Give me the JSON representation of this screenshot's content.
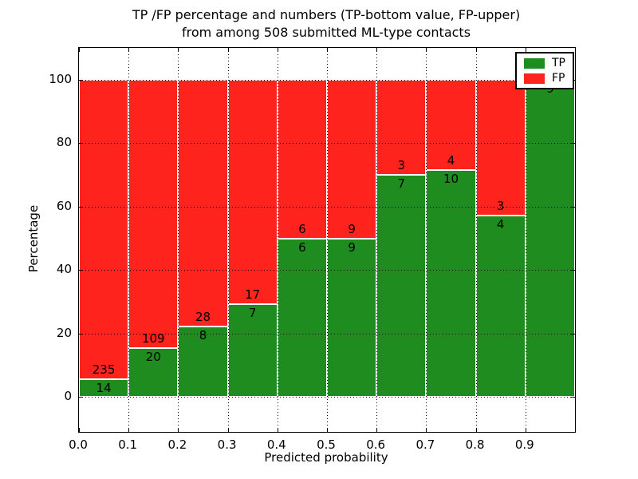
{
  "figure": {
    "title_line1": "TP /FP percentage and numbers (TP-bottom value, FP-upper)",
    "title_line2": "from among 508 submitted ML-type contacts",
    "background_color": "#ffffff"
  },
  "chart_data": {
    "type": "bar",
    "stacked": true,
    "orientation": "vertical",
    "title": "TP /FP percentage and numbers (TP-bottom value, FP-upper) from among 508 submitted ML-type contacts",
    "xlabel": "Predicted probability",
    "ylabel": "Percentage",
    "total_contacts": 508,
    "bin_width": 0.1,
    "bin_left_edges": [
      0.0,
      0.1,
      0.2,
      0.3,
      0.4,
      0.5,
      0.6,
      0.7,
      0.8,
      0.9
    ],
    "series": [
      {
        "name": "TP",
        "color": "#1e8c1e",
        "counts": [
          14,
          20,
          8,
          7,
          6,
          9,
          7,
          10,
          4,
          9
        ]
      },
      {
        "name": "FP",
        "color": "#ff231d",
        "counts": [
          235,
          109,
          28,
          17,
          6,
          9,
          3,
          4,
          3,
          0
        ]
      }
    ],
    "tp_percent_of_bin": [
      5.6,
      15.5,
      22.2,
      29.2,
      50.0,
      50.0,
      70.0,
      71.4,
      57.1,
      100.0
    ],
    "xticks": [
      "0.0",
      "0.1",
      "0.2",
      "0.3",
      "0.4",
      "0.5",
      "0.6",
      "0.7",
      "0.8",
      "0.9"
    ],
    "yticks": [
      0,
      20,
      40,
      60,
      80,
      100
    ],
    "xlim": [
      0.0,
      1.0
    ],
    "ylim": [
      -11,
      110
    ],
    "grid": true,
    "grid_style": "dotted",
    "legend_position": "upper right"
  },
  "legend": {
    "items": [
      {
        "label": "TP",
        "color": "#1e8c1e"
      },
      {
        "label": "FP",
        "color": "#ff231d"
      }
    ]
  }
}
